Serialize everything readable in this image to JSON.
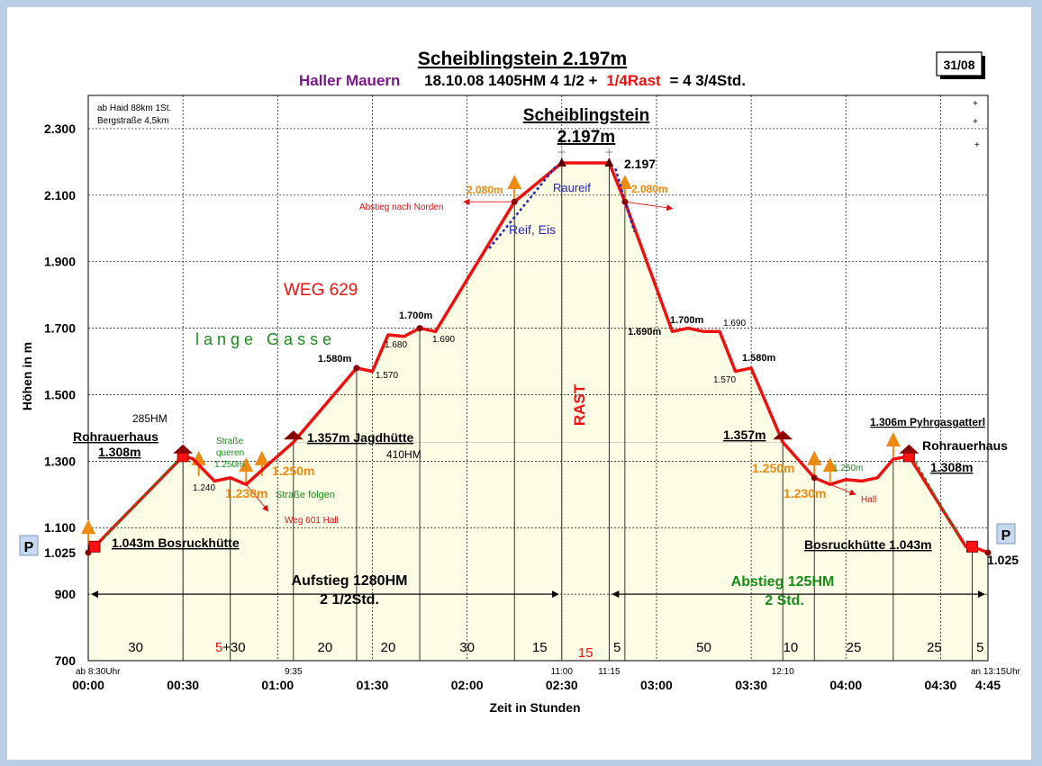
{
  "header": {
    "title": "Scheiblingstein 2.197m",
    "region": "Haller Mauern",
    "date_hm": "18.10.08  1405HM  4 1/2 +",
    "rest": "1/4Rast",
    "total": "= 4 3/4Std.",
    "badge": "31/08"
  },
  "colors": {
    "profile": "#ee1111",
    "fill": "#fdfde6",
    "orange": "#ee8a10",
    "green": "#1a8a1a",
    "purple": "#7a1a8a",
    "blue": "#2222bb",
    "darkred": "#8b0000"
  },
  "chart_data": {
    "type": "area",
    "title": "Scheiblingstein 2.197m",
    "xlabel": "Zeit in  Stunden",
    "ylabel": "Höhen in m",
    "xlim": [
      0,
      285
    ],
    "ylim": [
      700,
      2400
    ],
    "y_ticks": [
      {
        "v": 700,
        "label": "700"
      },
      {
        "v": 900,
        "label": "900"
      },
      {
        "v": 1025,
        "label": "1.025"
      },
      {
        "v": 1100,
        "label": "1.100"
      },
      {
        "v": 1300,
        "label": "1.300"
      },
      {
        "v": 1500,
        "label": "1.500"
      },
      {
        "v": 1700,
        "label": "1.700"
      },
      {
        "v": 1900,
        "label": "1.900"
      },
      {
        "v": 2100,
        "label": "2.100"
      },
      {
        "v": 2300,
        "label": "2.300"
      }
    ],
    "x_ticks": [
      {
        "v": 0,
        "label": "00:00"
      },
      {
        "v": 30,
        "label": "00:30"
      },
      {
        "v": 60,
        "label": "01:00"
      },
      {
        "v": 90,
        "label": "01:30"
      },
      {
        "v": 120,
        "label": "02:00"
      },
      {
        "v": 150,
        "label": "02:30"
      },
      {
        "v": 180,
        "label": "03:00"
      },
      {
        "v": 210,
        "label": "03:30"
      },
      {
        "v": 240,
        "label": "04:00"
      },
      {
        "v": 270,
        "label": "04:30"
      },
      {
        "v": 285,
        "label": "4:45"
      }
    ],
    "clock_labels": [
      {
        "x": 0,
        "label": "ab 8:30Uhr"
      },
      {
        "x": 65,
        "label": "9:35"
      },
      {
        "x": 150,
        "label": "11:00"
      },
      {
        "x": 165,
        "label": "11:15"
      },
      {
        "x": 220,
        "label": "12:10"
      },
      {
        "x": 285,
        "label": "an 13:15Uhr"
      }
    ],
    "segments": [
      {
        "x": 15,
        "label": "30"
      },
      {
        "x1": 45,
        "label1": "5",
        "label2": "+30"
      },
      {
        "x": 75,
        "label": "20"
      },
      {
        "x": 95,
        "label": "20"
      },
      {
        "x": 120,
        "label": "30"
      },
      {
        "x": 143,
        "label": "15"
      },
      {
        "x": 157.5,
        "label": "15",
        "red": true
      },
      {
        "x": 167.5,
        "label": "5"
      },
      {
        "x": 195,
        "label": "50"
      },
      {
        "x": 222.5,
        "label": "10"
      },
      {
        "x": 242.5,
        "label": "25"
      },
      {
        "x": 268,
        "label": "25"
      },
      {
        "x": 282.5,
        "label": "5"
      }
    ],
    "v_lines": [
      30,
      45,
      65,
      85,
      105,
      135,
      150,
      165,
      170,
      220,
      230,
      255,
      280
    ],
    "series": [
      {
        "values": [
          [
            0,
            1025
          ],
          [
            2,
            1043
          ],
          [
            30,
            1315
          ],
          [
            33,
            1308
          ],
          [
            40,
            1240
          ],
          [
            45,
            1250
          ],
          [
            50,
            1230
          ],
          [
            57,
            1290
          ],
          [
            65,
            1357
          ],
          [
            85,
            1580
          ],
          [
            90,
            1570
          ],
          [
            95,
            1680
          ],
          [
            100,
            1675
          ],
          [
            105,
            1700
          ],
          [
            110,
            1690
          ],
          [
            135,
            2080
          ],
          [
            150,
            2197
          ],
          [
            165,
            2197
          ],
          [
            170,
            2080
          ],
          [
            185,
            1690
          ],
          [
            190,
            1700
          ],
          [
            195,
            1690
          ],
          [
            200,
            1690
          ],
          [
            205,
            1570
          ],
          [
            210,
            1580
          ],
          [
            220,
            1357
          ],
          [
            230,
            1250
          ],
          [
            235,
            1230
          ],
          [
            240,
            1245
          ],
          [
            245,
            1240
          ],
          [
            250,
            1250
          ],
          [
            255,
            1306
          ],
          [
            260,
            1315
          ],
          [
            278,
            1043
          ],
          [
            280,
            1043
          ],
          [
            285,
            1025
          ]
        ]
      }
    ],
    "annotations": {
      "info1": "ab Haid 88km 1St.",
      "info2": "Bergstraße 4,5km",
      "plus": "+",
      "summit_name": "Scheiblingstein",
      "summit_height": "2.197m",
      "summit_right": "2.197",
      "rast": "RAST",
      "weg": "WEG 629",
      "lange_gasse": "l a n g e   G a s s e",
      "hm285": "285HM",
      "rohrauerhaus": "Rohrauerhaus",
      "rohrauer_h": "1.308m",
      "jagdhuette": "1.357m Jagdhütte",
      "hm410": "410HM",
      "bosruck_left": "1.043m Bosruckhütte",
      "bosruck_right": "Bosruckhütte 1.043m",
      "pyhrgas": "1.306m Pyhrgasgatterl",
      "rohrauer_right": "Rohrauerhaus",
      "rohrauer_right_h": "1.308m",
      "p_left": "P",
      "p_right": "P",
      "val_1025_right": "1.025",
      "strasse_queren1": "Straße",
      "strasse_queren2": "queren",
      "strasse_folgen": "Straße folgen",
      "weg601": "Weg 601 Hall",
      "hall": "Hall",
      "h1250_small_left": "1.250m",
      "h1250_left": "1.250m",
      "h1230_left": "1.230m",
      "h1240": "1.240",
      "h1580_left": "1.580m",
      "h1570_left": "1.570",
      "h1680": "1.680",
      "h1700_left": "1.700m",
      "h1690_left": "1.690",
      "h2080_left": "2.080m",
      "h2080_right": "2.080m",
      "absteig_norden": "Abstieg nach Norden",
      "raureif": "Raureif",
      "reif_eis": "Reif, Eis",
      "h1690_right": "1.690m",
      "h1700_right": "1.700m",
      "h1690_r2": "1.690",
      "h1580_right": "1.580m",
      "h1570_right": "1.570",
      "h1357_right": "1.357m",
      "h1250_right": "1.250m",
      "h1230_right": "1.230m",
      "h1250_small_right": "1.250m",
      "aufstieg1": "Aufstieg 1280HM",
      "aufstieg2": "2 1/2Std.",
      "abstieg1": "Abstieg 125HM",
      "abstieg2": "2 Std."
    }
  }
}
